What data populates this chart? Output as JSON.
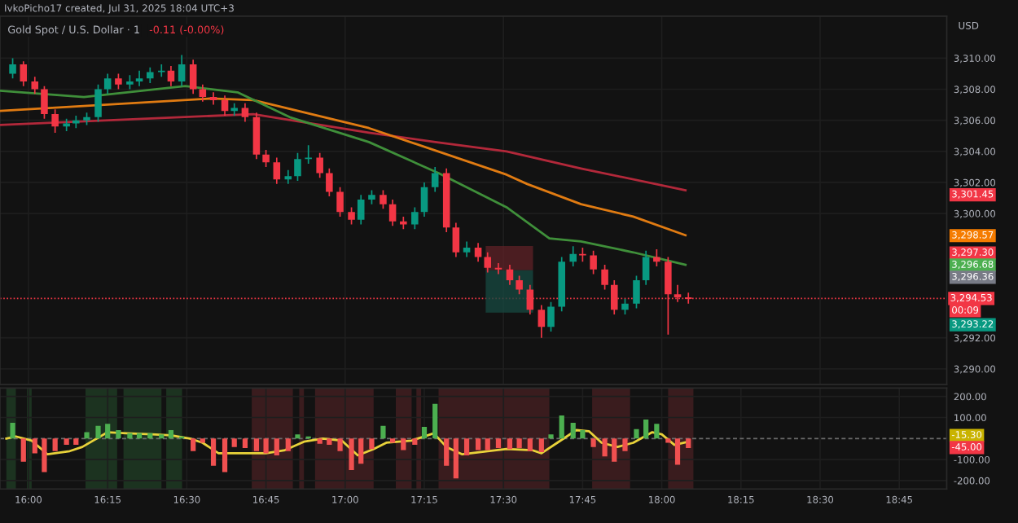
{
  "chart_data": [
    {
      "type": "candlestick",
      "title": "Gold Spot / U.S. Dollar · 1",
      "subtitle": "-0.11 (-0.00%)",
      "annotations": [
        "IvkoPicho17 created, Jul 31, 2025 18:04 UTC+3",
        "USD",
        "3,301.45",
        "3,298.57",
        "3,297.30",
        "3,296.68",
        "3,296.36",
        "00:09",
        "3,293.22"
      ],
      "x": [
        15.95,
        15.984,
        16.02,
        16.05,
        16.084,
        16.12,
        16.15,
        16.184,
        16.22,
        16.25,
        16.284,
        16.32,
        16.35,
        16.384,
        16.42,
        16.45,
        16.484,
        16.52,
        16.55,
        16.584,
        16.62,
        16.65,
        16.684,
        16.72,
        16.75,
        16.784,
        16.82,
        16.85,
        16.884,
        16.92,
        16.95,
        16.984,
        17.02,
        17.05,
        17.084,
        17.12,
        17.15,
        17.184,
        17.22,
        17.25,
        17.284,
        17.32,
        17.35,
        17.384,
        17.42,
        17.45,
        17.484,
        17.52,
        17.55,
        17.584,
        17.62,
        17.65,
        17.684,
        17.72,
        17.75,
        17.784,
        17.82,
        17.85,
        17.884,
        17.92,
        17.95,
        17.984,
        18.02,
        18.05,
        18.084
      ],
      "ohlc": [
        [
          3309.0,
          3310.0,
          3308.7,
          3309.6
        ],
        [
          3309.6,
          3309.8,
          3308.2,
          3308.5
        ],
        [
          3308.5,
          3308.8,
          3307.7,
          3308.0
        ],
        [
          3308.0,
          3308.2,
          3306.1,
          3306.4
        ],
        [
          3306.4,
          3306.7,
          3305.2,
          3305.6
        ],
        [
          3305.6,
          3306.1,
          3305.3,
          3305.8
        ],
        [
          3305.8,
          3306.3,
          3305.5,
          3306.0
        ],
        [
          3306.0,
          3306.5,
          3305.7,
          3306.2
        ],
        [
          3306.2,
          3308.3,
          3305.9,
          3308.0
        ],
        [
          3308.0,
          3309.0,
          3307.7,
          3308.7
        ],
        [
          3308.7,
          3309.0,
          3308.0,
          3308.3
        ],
        [
          3308.3,
          3308.9,
          3308.0,
          3308.5
        ],
        [
          3308.5,
          3309.2,
          3308.2,
          3308.7
        ],
        [
          3308.7,
          3309.4,
          3308.4,
          3309.1
        ],
        [
          3309.1,
          3309.6,
          3308.8,
          3309.2
        ],
        [
          3309.2,
          3309.5,
          3308.2,
          3308.5
        ],
        [
          3308.5,
          3310.2,
          3308.2,
          3309.6
        ],
        [
          3309.6,
          3309.9,
          3307.7,
          3308.0
        ],
        [
          3308.0,
          3308.3,
          3307.2,
          3307.5
        ],
        [
          3307.5,
          3307.8,
          3307.0,
          3307.3
        ],
        [
          3307.3,
          3307.6,
          3306.3,
          3306.6
        ],
        [
          3306.6,
          3307.1,
          3306.3,
          3306.8
        ],
        [
          3306.8,
          3307.1,
          3305.9,
          3306.2
        ],
        [
          3306.2,
          3306.5,
          3303.5,
          3303.8
        ],
        [
          3303.8,
          3304.1,
          3303.0,
          3303.3
        ],
        [
          3303.3,
          3303.6,
          3301.9,
          3302.2
        ],
        [
          3302.2,
          3302.8,
          3301.9,
          3302.4
        ],
        [
          3302.4,
          3303.9,
          3302.1,
          3303.5
        ],
        [
          3303.5,
          3304.4,
          3303.2,
          3303.6
        ],
        [
          3303.6,
          3303.9,
          3302.3,
          3302.6
        ],
        [
          3302.6,
          3302.9,
          3301.1,
          3301.4
        ],
        [
          3301.4,
          3301.7,
          3299.8,
          3300.1
        ],
        [
          3300.1,
          3300.4,
          3299.3,
          3299.6
        ],
        [
          3299.6,
          3301.2,
          3299.3,
          3300.9
        ],
        [
          3300.9,
          3301.5,
          3300.6,
          3301.2
        ],
        [
          3301.2,
          3301.5,
          3300.3,
          3300.6
        ],
        [
          3300.6,
          3300.9,
          3299.2,
          3299.5
        ],
        [
          3299.5,
          3299.8,
          3299.0,
          3299.3
        ],
        [
          3299.3,
          3300.4,
          3299.0,
          3300.1
        ],
        [
          3300.1,
          3302.0,
          3299.8,
          3301.7
        ],
        [
          3301.7,
          3303.0,
          3301.4,
          3302.6
        ],
        [
          3302.6,
          3302.9,
          3298.8,
          3299.1
        ],
        [
          3299.1,
          3299.4,
          3297.2,
          3297.5
        ],
        [
          3297.5,
          3298.2,
          3297.2,
          3297.8
        ],
        [
          3297.8,
          3298.1,
          3296.9,
          3297.2
        ],
        [
          3297.2,
          3297.5,
          3296.2,
          3296.5
        ],
        [
          3296.5,
          3296.8,
          3296.1,
          3296.4
        ],
        [
          3296.4,
          3296.7,
          3295.4,
          3295.7
        ],
        [
          3295.7,
          3296.0,
          3294.8,
          3295.1
        ],
        [
          3295.1,
          3295.4,
          3293.5,
          3293.8
        ],
        [
          3293.8,
          3294.1,
          3292.0,
          3292.7
        ],
        [
          3292.7,
          3294.3,
          3292.4,
          3294.0
        ],
        [
          3294.0,
          3297.2,
          3293.7,
          3296.9
        ],
        [
          3296.9,
          3297.9,
          3296.6,
          3297.4
        ],
        [
          3297.4,
          3297.8,
          3296.9,
          3297.3
        ],
        [
          3297.3,
          3297.6,
          3296.1,
          3296.4
        ],
        [
          3296.4,
          3296.7,
          3295.1,
          3295.4
        ],
        [
          3295.4,
          3295.7,
          3293.5,
          3293.8
        ],
        [
          3293.8,
          3294.5,
          3293.5,
          3294.2
        ],
        [
          3294.2,
          3296.0,
          3293.9,
          3295.7
        ],
        [
          3295.7,
          3297.6,
          3295.4,
          3297.2
        ],
        [
          3297.2,
          3297.7,
          3296.6,
          3296.9
        ],
        [
          3296.9,
          3297.2,
          3292.2,
          3294.8
        ],
        [
          3294.8,
          3295.4,
          3294.3,
          3294.6
        ],
        [
          3294.6,
          3294.9,
          3294.2,
          3294.5
        ]
      ],
      "colors": [
        "#089981",
        "#f23645",
        "#f23645",
        "#f23645",
        "#f23645",
        "#089981",
        "#089981",
        "#089981",
        "#089981",
        "#089981",
        "#f23645",
        "#089981",
        "#089981",
        "#089981",
        "#089981",
        "#f23645",
        "#089981",
        "#f23645",
        "#f23645",
        "#f23645",
        "#f23645",
        "#089981",
        "#f23645",
        "#f23645",
        "#f23645",
        "#f23645",
        "#089981",
        "#089981",
        "#089981",
        "#f23645",
        "#f23645",
        "#f23645",
        "#f23645",
        "#089981",
        "#089981",
        "#f23645",
        "#f23645",
        "#f23645",
        "#089981",
        "#089981",
        "#089981",
        "#f23645",
        "#f23645",
        "#089981",
        "#f23645",
        "#f23645",
        "#f23645",
        "#f23645",
        "#f23645",
        "#f23645",
        "#f23645",
        "#089981",
        "#089981",
        "#089981",
        "#f23645",
        "#f23645",
        "#f23645",
        "#f23645",
        "#089981",
        "#089981",
        "#089981",
        "#f23645",
        "#f23645",
        "#f23645",
        "#f23645"
      ],
      "series": [
        {
          "type": "line",
          "color": "#b2283a",
          "x": [
            15.91,
            16.71,
            17.075,
            17.285,
            17.51,
            17.745,
            18.075
          ],
          "values": [
            3305.7,
            3306.4,
            3305.2,
            3304.6,
            3304.0,
            3302.9,
            3301.5
          ]
        },
        {
          "type": "line",
          "color": "#e07b12",
          "x": [
            15.91,
            16.575,
            16.71,
            17.075,
            17.51,
            17.575,
            17.745,
            17.91,
            18.075
          ],
          "values": [
            3306.6,
            3307.4,
            3307.3,
            3305.5,
            3302.5,
            3301.9,
            3300.6,
            3299.8,
            3298.6
          ]
        },
        {
          "type": "line",
          "color": "#3f8f3a",
          "x": [
            15.91,
            16.175,
            16.495,
            16.66,
            16.825,
            17.075,
            17.295,
            17.51,
            17.645,
            17.745,
            17.91,
            18.075
          ],
          "values": [
            3307.9,
            3307.5,
            3308.2,
            3307.8,
            3306.2,
            3304.6,
            3302.6,
            3300.4,
            3298.4,
            3298.2,
            3297.5,
            3296.7
          ]
        }
      ],
      "ref_lines": [
        {
          "axis": "y",
          "value": 3294.53,
          "label": "3,294.53",
          "color": "#f23645",
          "line_style": "dotted"
        }
      ],
      "xlim": [
        15.91,
        18.9
      ],
      "ylim": [
        3289.0,
        3312.7
      ],
      "yticks": [
        {
          "value": 3290,
          "label": "3,290.00"
        },
        {
          "value": 3292,
          "label": "3,292.00"
        },
        {
          "value": 3300,
          "label": "3,300.00"
        },
        {
          "value": 3302,
          "label": "3,302.00"
        },
        {
          "value": 3304,
          "label": "3,304.00"
        },
        {
          "value": 3306,
          "label": "3,306.00"
        },
        {
          "value": 3308,
          "label": "3,308.00"
        },
        {
          "value": 3310,
          "label": "3,310.00"
        }
      ],
      "grid": true,
      "tick_labels": "y"
    },
    {
      "type": "bar",
      "x": [
        15.95,
        15.984,
        16.02,
        16.05,
        16.084,
        16.12,
        16.15,
        16.184,
        16.22,
        16.25,
        16.284,
        16.32,
        16.35,
        16.384,
        16.42,
        16.45,
        16.484,
        16.52,
        16.55,
        16.584,
        16.62,
        16.65,
        16.684,
        16.72,
        16.75,
        16.784,
        16.82,
        16.85,
        16.884,
        16.92,
        16.95,
        16.984,
        17.02,
        17.05,
        17.084,
        17.12,
        17.15,
        17.184,
        17.22,
        17.25,
        17.284,
        17.32,
        17.35,
        17.384,
        17.42,
        17.45,
        17.484,
        17.52,
        17.55,
        17.584,
        17.62,
        17.65,
        17.684,
        17.72,
        17.75,
        17.784,
        17.82,
        17.85,
        17.884,
        17.92,
        17.95,
        17.984,
        18.02,
        18.05,
        18.084
      ],
      "values": [
        75,
        -110,
        -70,
        -160,
        -60,
        -30,
        -30,
        30,
        60,
        70,
        40,
        25,
        25,
        25,
        20,
        40,
        10,
        -60,
        -20,
        -130,
        -160,
        -40,
        -45,
        -60,
        -70,
        -80,
        -60,
        20,
        10,
        -25,
        -30,
        -60,
        -150,
        -120,
        -50,
        60,
        -20,
        -55,
        -30,
        55,
        165,
        -130,
        -190,
        -80,
        -55,
        -55,
        -45,
        -50,
        -45,
        -60,
        -65,
        20,
        110,
        75,
        40,
        -40,
        -85,
        -110,
        -60,
        45,
        90,
        70,
        -20,
        -125,
        -45
      ],
      "colors": [
        "#4caf50",
        "#f05050",
        "#f05050",
        "#f05050",
        "#f05050",
        "#f05050",
        "#f05050",
        "#4caf50",
        "#4caf50",
        "#4caf50",
        "#4caf50",
        "#4caf50",
        "#4caf50",
        "#4caf50",
        "#4caf50",
        "#4caf50",
        "#4caf50",
        "#f05050",
        "#f05050",
        "#f05050",
        "#f05050",
        "#f05050",
        "#f05050",
        "#f05050",
        "#f05050",
        "#f05050",
        "#f05050",
        "#4caf50",
        "#4caf50",
        "#f05050",
        "#f05050",
        "#f05050",
        "#f05050",
        "#f05050",
        "#f05050",
        "#4caf50",
        "#f05050",
        "#f05050",
        "#f05050",
        "#4caf50",
        "#4caf50",
        "#f05050",
        "#f05050",
        "#f05050",
        "#f05050",
        "#f05050",
        "#f05050",
        "#f05050",
        "#f05050",
        "#f05050",
        "#f05050",
        "#4caf50",
        "#4caf50",
        "#4caf50",
        "#4caf50",
        "#f05050",
        "#f05050",
        "#f05050",
        "#f05050",
        "#4caf50",
        "#4caf50",
        "#4caf50",
        "#f05050",
        "#f05050",
        "#f05050"
      ],
      "series": [
        {
          "type": "line",
          "color": "#e8d23a",
          "x": [
            15.93,
            15.96,
            16.01,
            16.06,
            16.13,
            16.17,
            16.25,
            16.31,
            16.39,
            16.45,
            16.51,
            16.55,
            16.6,
            16.65,
            16.75,
            16.81,
            16.87,
            16.93,
            16.99,
            17.04,
            17.09,
            17.13,
            17.21,
            17.28,
            17.32,
            17.37,
            17.45,
            17.51,
            17.59,
            17.62,
            17.67,
            17.73,
            17.77,
            17.81,
            17.86,
            17.91,
            17.97,
            18.0,
            18.04,
            18.084
          ],
          "values": [
            0,
            10,
            -10,
            -75,
            -60,
            -40,
            30,
            25,
            20,
            15,
            0,
            -20,
            -70,
            -70,
            -70,
            -55,
            -15,
            0,
            -10,
            -80,
            -50,
            -20,
            -10,
            25,
            -40,
            -75,
            -60,
            -50,
            -55,
            -70,
            -20,
            40,
            35,
            -20,
            -40,
            -20,
            30,
            20,
            -30,
            -15
          ]
        }
      ],
      "bands": [
        {
          "axis": "x",
          "from": 15.93,
          "to": 15.96,
          "color": "#1c3320"
        },
        {
          "axis": "x",
          "from": 15.995,
          "to": 16.01,
          "color": "#1c3320"
        },
        {
          "axis": "x",
          "from": 16.18,
          "to": 16.28,
          "color": "#1c3320"
        },
        {
          "axis": "x",
          "from": 16.3,
          "to": 16.42,
          "color": "#1c3320"
        },
        {
          "axis": "x",
          "from": 16.435,
          "to": 16.485,
          "color": "#1c3320"
        },
        {
          "axis": "x",
          "from": 16.705,
          "to": 16.835,
          "color": "#3a1c1e"
        },
        {
          "axis": "x",
          "from": 16.855,
          "to": 16.87,
          "color": "#3a1c1e"
        },
        {
          "axis": "x",
          "from": 16.905,
          "to": 17.09,
          "color": "#3a1c1e"
        },
        {
          "axis": "x",
          "from": 17.16,
          "to": 17.21,
          "color": "#3a1c1e"
        },
        {
          "axis": "x",
          "from": 17.225,
          "to": 17.24,
          "color": "#3a1c1e"
        },
        {
          "axis": "x",
          "from": 17.295,
          "to": 17.645,
          "color": "#3a1c1e"
        },
        {
          "axis": "x",
          "from": 17.78,
          "to": 17.9,
          "color": "#3a1c1e"
        },
        {
          "axis": "x",
          "from": 18.02,
          "to": 18.1,
          "color": "#3a1c1e"
        }
      ],
      "ref_lines": [
        {
          "axis": "y",
          "value": 0,
          "color": "#6a6a6a",
          "line_style": "dashed"
        }
      ],
      "annotations": [
        "-15.30",
        "-45.00"
      ],
      "xlim": [
        15.91,
        18.9
      ],
      "ylim": [
        -240,
        240
      ],
      "xticks": [
        {
          "value": 16,
          "label": "16:00"
        },
        {
          "value": 16.25,
          "label": "16:15"
        },
        {
          "value": 16.5,
          "label": "16:30"
        },
        {
          "value": 16.75,
          "label": "16:45"
        },
        {
          "value": 17,
          "label": "17:00"
        },
        {
          "value": 17.25,
          "label": "17:15"
        },
        {
          "value": 17.5,
          "label": "17:30"
        },
        {
          "value": 17.75,
          "label": "17:45"
        },
        {
          "value": 18,
          "label": "18:00"
        },
        {
          "value": 18.25,
          "label": "18:15"
        },
        {
          "value": 18.5,
          "label": "18:30"
        },
        {
          "value": 18.75,
          "label": "18:45"
        }
      ],
      "yticks": [
        {
          "value": 200,
          "label": "200.00"
        },
        {
          "value": 100,
          "label": "100.00"
        },
        {
          "value": -100,
          "label": "-100.00"
        },
        {
          "value": -200,
          "label": "-200.00"
        }
      ],
      "grid": true
    }
  ]
}
